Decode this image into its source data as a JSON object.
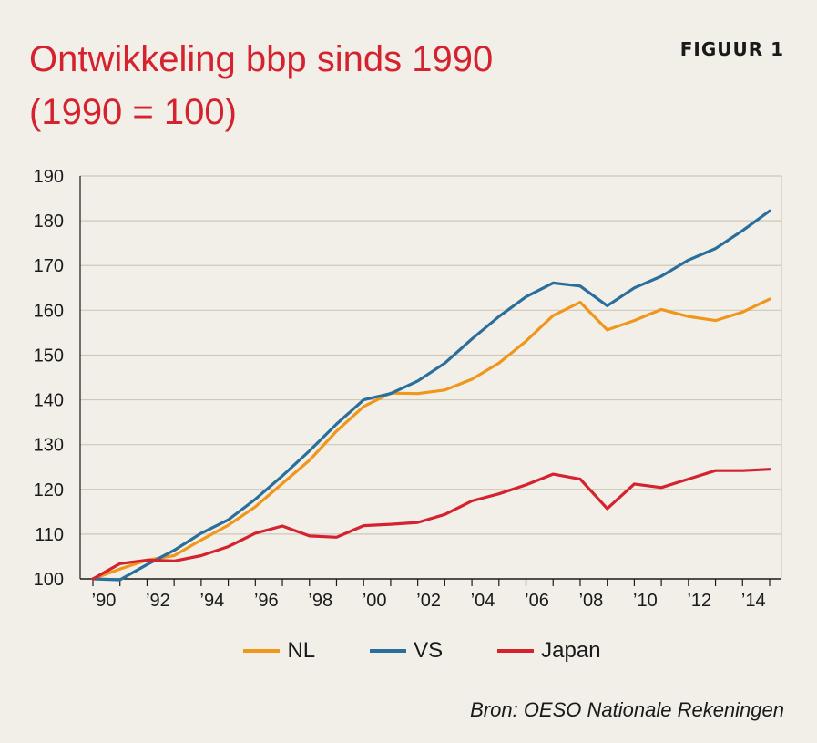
{
  "header": {
    "title_line1": "Ontwikkeling bbp sinds 1990",
    "title_line2": "(1990 = 100)",
    "figure_label": "FIGUUR 1"
  },
  "source": "Bron: OESO Nationale Rekeningen",
  "colors": {
    "NL": "#f0961b",
    "VS": "#2a6e9b",
    "Japan": "#d4232f",
    "grid": "#cfc7b8",
    "axis": "#1a1a1a",
    "title": "#d4232f"
  },
  "chart_data": {
    "type": "line",
    "title": "Ontwikkeling bbp sinds 1990 (1990 = 100)",
    "xlabel": "",
    "ylabel": "",
    "ylim": [
      100,
      190
    ],
    "yticks": [
      100,
      110,
      120,
      130,
      140,
      150,
      160,
      170,
      180,
      190
    ],
    "x": [
      1990,
      1991,
      1992,
      1993,
      1994,
      1995,
      1996,
      1997,
      1998,
      1999,
      2000,
      2001,
      2002,
      2003,
      2004,
      2005,
      2006,
      2007,
      2008,
      2009,
      2010,
      2011,
      2012,
      2013,
      2014,
      2015
    ],
    "xticks": [
      1990,
      1992,
      1994,
      1996,
      1998,
      2000,
      2002,
      2004,
      2006,
      2008,
      2010,
      2012,
      2014
    ],
    "xtick_labels": [
      "’90",
      "’92",
      "’94",
      "’96",
      "’98",
      "’00",
      "’02",
      "’04",
      "’06",
      "’08",
      "’10",
      "’12",
      "’14"
    ],
    "grid": true,
    "legend_position": "bottom",
    "series": [
      {
        "name": "NL",
        "values": [
          100,
          102.2,
          104.2,
          105.2,
          108.7,
          112.0,
          116.1,
          121.3,
          126.5,
          133.0,
          138.5,
          141.5,
          141.4,
          142.2,
          144.6,
          148.2,
          153.1,
          158.8,
          161.8,
          155.6,
          157.7,
          160.2,
          158.6,
          157.7,
          159.6,
          162.5
        ]
      },
      {
        "name": "VS",
        "values": [
          100,
          99.8,
          103.2,
          106.4,
          110.2,
          113.2,
          117.8,
          123.0,
          128.6,
          134.6,
          140.0,
          141.4,
          144.2,
          148.2,
          153.6,
          158.6,
          163.0,
          166.1,
          165.4,
          161.0,
          165.0,
          167.6,
          171.2,
          173.8,
          177.8,
          182.2
        ]
      },
      {
        "name": "Japan",
        "values": [
          100,
          103.4,
          104.2,
          104.0,
          105.2,
          107.2,
          110.2,
          111.8,
          109.6,
          109.3,
          111.9,
          112.2,
          112.6,
          114.4,
          117.4,
          119.0,
          121.0,
          123.4,
          122.3,
          115.7,
          121.2,
          120.4,
          122.3,
          124.2,
          124.2,
          124.5
        ]
      }
    ]
  }
}
